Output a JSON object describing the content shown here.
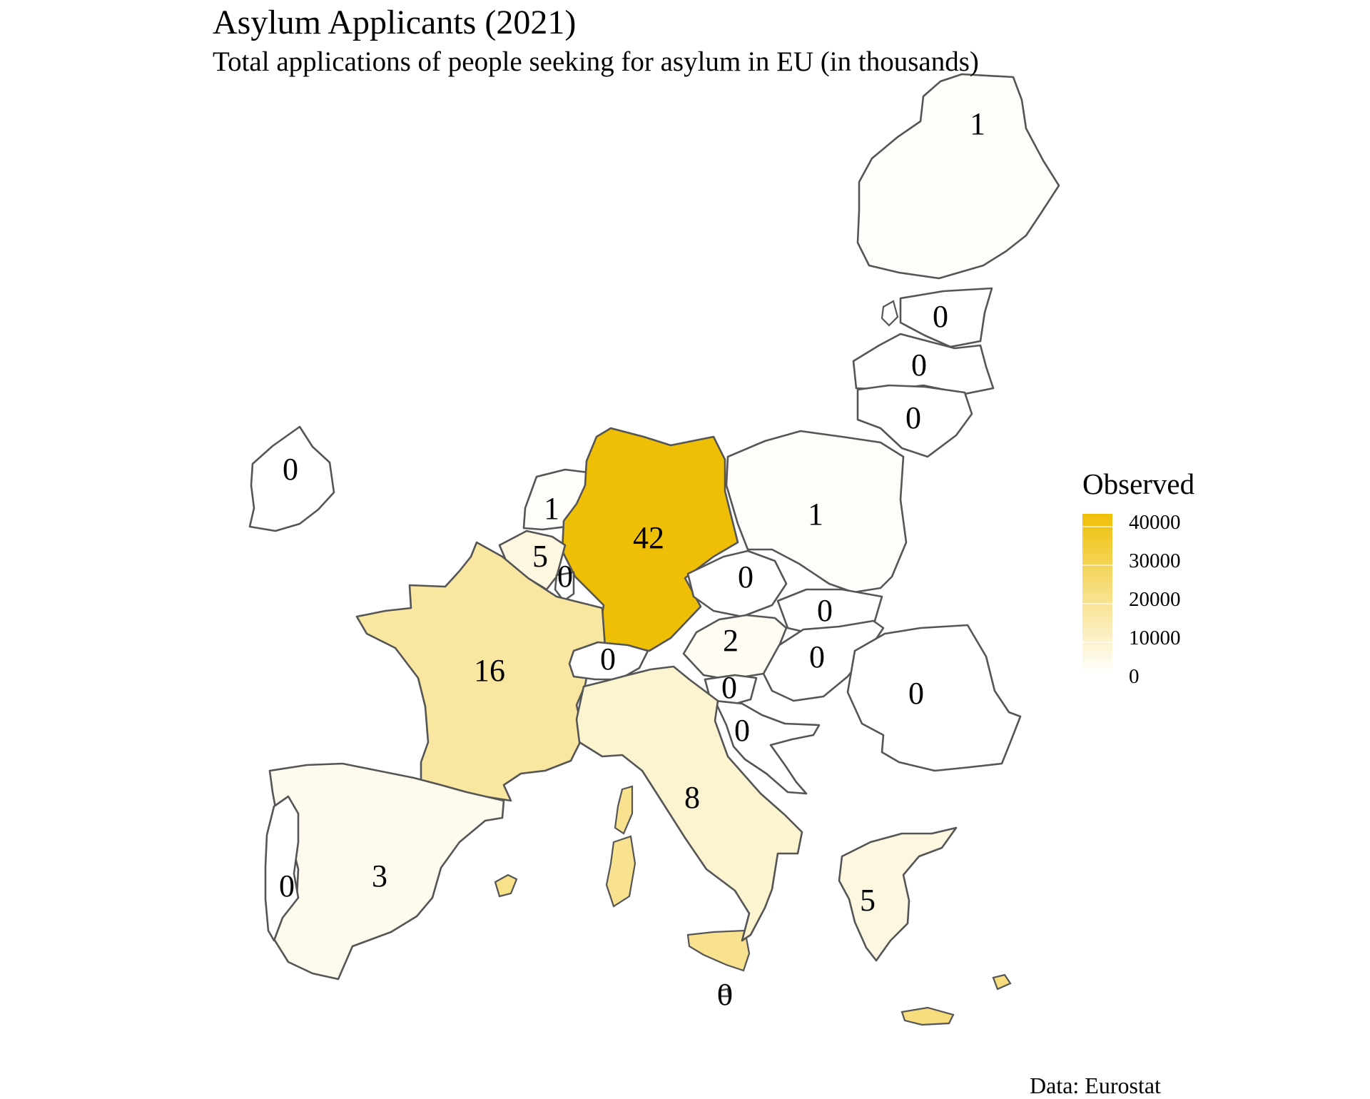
{
  "title": "Asylum Applicants (2021)",
  "subtitle": "Total applications of people seeking for asylum in EU (in thousands)",
  "caption": "Data: Eurostat",
  "legend": {
    "title": "Observed",
    "ticks": [
      "40000",
      "30000",
      "20000",
      "10000",
      "0"
    ],
    "min": 0,
    "max": 42000,
    "low_color": "#ffffff",
    "high_color": "#efbf07"
  },
  "regions": [
    {
      "label": "1",
      "value": 1
    },
    {
      "label": "0",
      "value": 0
    },
    {
      "label": "0",
      "value": 0
    },
    {
      "label": "0",
      "value": 0
    },
    {
      "label": "0",
      "value": 0
    },
    {
      "label": "1",
      "value": 1
    },
    {
      "label": "1",
      "value": 1
    },
    {
      "label": "42",
      "value": 42
    },
    {
      "label": "5",
      "value": 5
    },
    {
      "label": "0",
      "value": 0
    },
    {
      "label": "0",
      "value": 0
    },
    {
      "label": "0",
      "value": 0
    },
    {
      "label": "2",
      "value": 2
    },
    {
      "label": "16",
      "value": 16
    },
    {
      "label": "0",
      "value": 0
    },
    {
      "label": "0",
      "value": 0
    },
    {
      "label": "0",
      "value": 0
    },
    {
      "label": "0",
      "value": 0
    },
    {
      "label": "0",
      "value": 0
    },
    {
      "label": "8",
      "value": 8
    },
    {
      "label": "3",
      "value": 3
    },
    {
      "label": "0",
      "value": 0
    },
    {
      "label": "5",
      "value": 5
    },
    {
      "label": "0",
      "value": 0
    }
  ]
}
